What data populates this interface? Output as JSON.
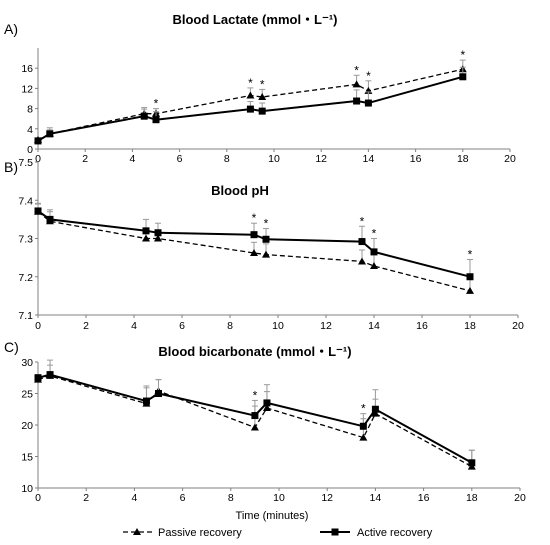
{
  "figure": {
    "x_axis_title": "Time (minutes)",
    "legend": [
      {
        "label": "Passive recovery",
        "style": "dashed",
        "marker": "triangle"
      },
      {
        "label": "Active recovery",
        "style": "solid",
        "marker": "square"
      }
    ]
  },
  "chart_data": [
    {
      "panel_label": "A)",
      "type": "line",
      "title": "Blood Lactate (mmol・L⁻¹)",
      "xlim": [
        0,
        20
      ],
      "ylim": [
        0,
        20
      ],
      "xticks": [
        "0",
        "2",
        "4",
        "6",
        "8",
        "10",
        "12",
        "14",
        "16",
        "18",
        "20"
      ],
      "yticks": [
        "0",
        "4",
        "8",
        "12",
        "16"
      ],
      "ytick_values": [
        0,
        4,
        8,
        12,
        16
      ],
      "series": [
        {
          "name": "Passive recovery",
          "x": [
            0,
            0.5,
            4.5,
            5,
            9,
            9.5,
            13.5,
            14,
            18
          ],
          "y": [
            1.8,
            3.0,
            7.0,
            7.0,
            10.6,
            10.3,
            12.8,
            11.5,
            15.8
          ],
          "err": [
            0.4,
            0.8,
            1.2,
            1.0,
            1.5,
            1.5,
            1.8,
            2.0,
            1.8
          ]
        },
        {
          "name": "Active recovery",
          "x": [
            0,
            0.5,
            4.5,
            5,
            9,
            9.5,
            13.5,
            14,
            18
          ],
          "y": [
            1.6,
            3.0,
            6.5,
            5.8,
            7.9,
            7.5,
            9.5,
            9.1,
            14.3
          ],
          "err": [
            0.4,
            1.2,
            1.4,
            1.6,
            1.5,
            1.6,
            2.2,
            2.2,
            1.9
          ]
        }
      ],
      "significance": [
        {
          "x": 5,
          "label": "*"
        },
        {
          "x": 9,
          "label": "*"
        },
        {
          "x": 9.5,
          "label": "*"
        },
        {
          "x": 13.5,
          "label": "*"
        },
        {
          "x": 14,
          "label": "*"
        },
        {
          "x": 18,
          "label": "*"
        }
      ]
    },
    {
      "panel_label": "B)",
      "type": "line",
      "title": "Blood pH",
      "xlim": [
        0,
        20
      ],
      "ylim": [
        7.1,
        7.5
      ],
      "xticks": [
        "0",
        "2",
        "4",
        "6",
        "8",
        "10",
        "12",
        "14",
        "16",
        "18",
        "20"
      ],
      "yticks": [
        "7.1",
        "7.2",
        "7.3",
        "7.4",
        "7.5"
      ],
      "ytick_values": [
        7.1,
        7.2,
        7.3,
        7.4,
        7.5
      ],
      "series": [
        {
          "name": "Passive recovery",
          "x": [
            0,
            0.5,
            4.5,
            5,
            9,
            9.5,
            13.5,
            14,
            18
          ],
          "y": [
            7.37,
            7.345,
            7.3,
            7.3,
            7.262,
            7.258,
            7.24,
            7.228,
            7.163
          ],
          "err": [
            0.02,
            0.025,
            0.02,
            0.02,
            0.028,
            0.028,
            0.03,
            0.03,
            0.03
          ]
        },
        {
          "name": "Active recovery",
          "x": [
            0,
            0.5,
            4.5,
            5,
            9,
            9.5,
            13.5,
            14,
            18
          ],
          "y": [
            7.372,
            7.35,
            7.32,
            7.315,
            7.31,
            7.298,
            7.292,
            7.265,
            7.2
          ],
          "err": [
            0.02,
            0.025,
            0.03,
            0.025,
            0.03,
            0.028,
            0.04,
            0.035,
            0.045
          ]
        }
      ],
      "significance": [
        {
          "x": 9,
          "label": "*"
        },
        {
          "x": 9.5,
          "label": "*"
        },
        {
          "x": 13.5,
          "label": "*"
        },
        {
          "x": 14,
          "label": "*"
        },
        {
          "x": 18,
          "label": "*"
        }
      ]
    },
    {
      "panel_label": "C)",
      "type": "line",
      "title": "Blood bicarbonate (mmol・L⁻¹)",
      "xlim": [
        0,
        20
      ],
      "ylim": [
        10,
        30
      ],
      "xticks": [
        "0",
        "2",
        "4",
        "6",
        "8",
        "10",
        "12",
        "14",
        "16",
        "18",
        "20"
      ],
      "yticks": [
        "10",
        "15",
        "20",
        "25",
        "30"
      ],
      "ytick_values": [
        10,
        15,
        20,
        25,
        30
      ],
      "series": [
        {
          "name": "Passive recovery",
          "x": [
            0,
            0.5,
            4.5,
            5,
            9,
            9.5,
            13.5,
            14,
            18
          ],
          "y": [
            27.2,
            27.8,
            23.4,
            25.4,
            19.6,
            22.7,
            18.0,
            21.8,
            13.4
          ],
          "err": [
            0.6,
            1.7,
            2.8,
            1.8,
            3.4,
            2.6,
            3.0,
            2.3,
            2.6
          ]
        },
        {
          "name": "Active recovery",
          "x": [
            0,
            0.5,
            4.5,
            5,
            9,
            9.5,
            13.5,
            14,
            18
          ],
          "y": [
            27.5,
            28.0,
            23.8,
            25.0,
            21.5,
            23.5,
            19.8,
            22.5,
            14.0
          ],
          "err": [
            0.5,
            2.3,
            2.1,
            2.2,
            2.4,
            2.9,
            2.0,
            3.1,
            2.0
          ]
        }
      ],
      "significance": [
        {
          "x": 9,
          "label": "*"
        },
        {
          "x": 13.5,
          "label": "*"
        }
      ]
    }
  ]
}
